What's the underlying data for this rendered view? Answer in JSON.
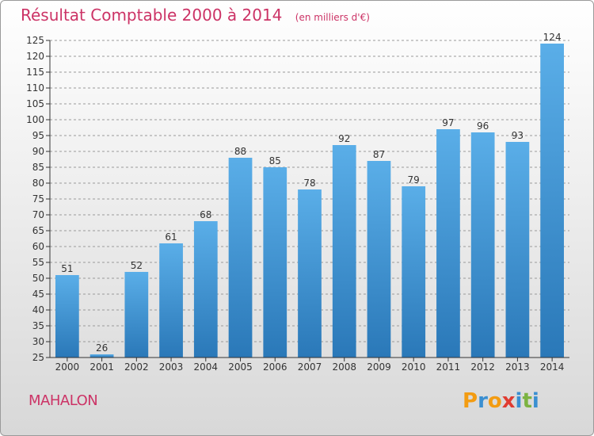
{
  "header": {
    "title": "Résultat Comptable 2000 à 2014",
    "subtitle": "(en milliers d'€)"
  },
  "footer": {
    "place": "MAHALON",
    "brand": "Proxiti",
    "brand_letters": [
      {
        "ch": "P",
        "color": "#f39c12"
      },
      {
        "ch": "r",
        "color": "#3a8fd1"
      },
      {
        "ch": "o",
        "color": "#f39c12"
      },
      {
        "ch": "x",
        "color": "#e03c31"
      },
      {
        "ch": "i",
        "color": "#3a8fd1"
      },
      {
        "ch": "t",
        "color": "#7cb342"
      },
      {
        "ch": "i",
        "color": "#3a8fd1"
      }
    ]
  },
  "colors": {
    "accent": "#cc3366",
    "bar_top": "#5aaee8",
    "bar_bottom": "#2a78b8",
    "grid": "#9a9a9a",
    "axis": "#333333"
  },
  "chart_data": {
    "type": "bar",
    "categories": [
      "2000",
      "2001",
      "2002",
      "2003",
      "2004",
      "2005",
      "2006",
      "2007",
      "2008",
      "2009",
      "2010",
      "2011",
      "2012",
      "2013",
      "2014"
    ],
    "values": [
      51,
      26,
      52,
      61,
      68,
      88,
      85,
      78,
      92,
      87,
      79,
      97,
      96,
      93,
      124
    ],
    "ylim": [
      25,
      125
    ],
    "yticks": [
      25,
      30,
      35,
      40,
      45,
      50,
      55,
      60,
      65,
      70,
      75,
      80,
      85,
      90,
      95,
      100,
      105,
      110,
      115,
      120,
      125
    ],
    "grid": true,
    "data_labels": true
  }
}
